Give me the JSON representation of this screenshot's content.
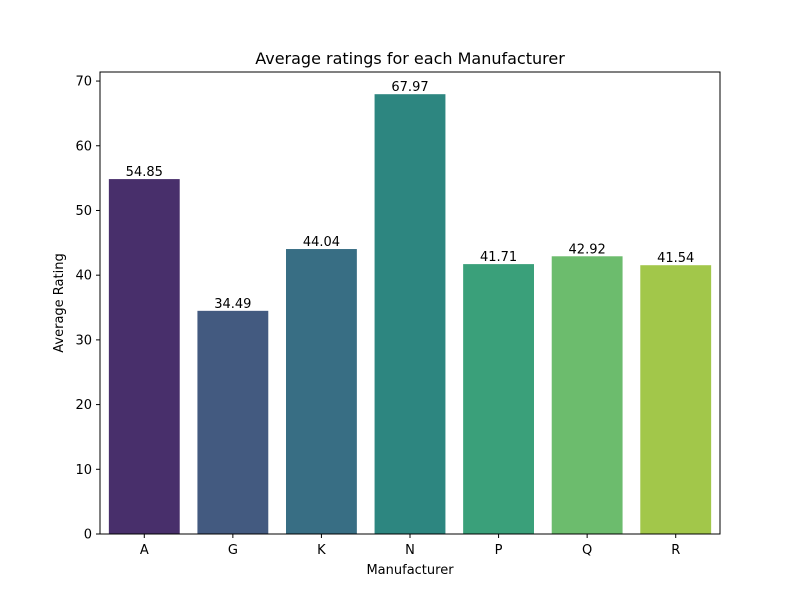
{
  "chart_data": {
    "type": "bar",
    "title": "Average ratings for each Manufacturer",
    "xlabel": "Manufacturer",
    "ylabel": "Average Rating",
    "categories": [
      "A",
      "G",
      "K",
      "N",
      "P",
      "Q",
      "R"
    ],
    "values": [
      54.85,
      34.49,
      44.04,
      67.97,
      41.71,
      42.92,
      41.54
    ],
    "data_labels": [
      "54.85",
      "34.49",
      "44.04",
      "67.97",
      "41.71",
      "42.92",
      "41.54"
    ],
    "colors": [
      "#482f6b",
      "#435a80",
      "#386e84",
      "#2d8680",
      "#3aa07a",
      "#6cbc6d",
      "#a2c74a"
    ],
    "ylim": [
      0,
      71.4
    ],
    "yticks": [
      0,
      10,
      20,
      30,
      40,
      50,
      60,
      70
    ],
    "grid": false,
    "legend": "none"
  }
}
